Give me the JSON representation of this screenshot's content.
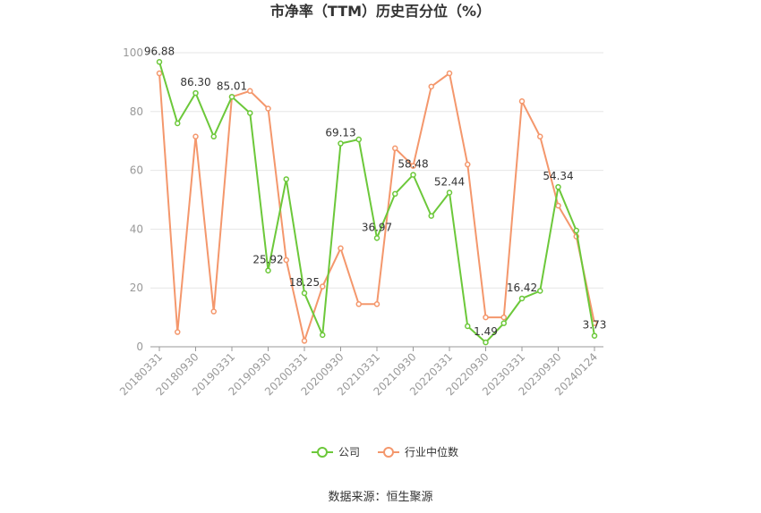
{
  "chart_data": {
    "type": "line",
    "title": "市净率（TTM）历史百分位（%）",
    "source": "数据来源：恒生聚源",
    "categories": [
      "20180331",
      null,
      "20180930",
      null,
      "20190331",
      null,
      "20190930",
      null,
      "20200331",
      null,
      "20200930",
      null,
      "20210331",
      null,
      "20210930",
      null,
      "20220331",
      null,
      "20220930",
      null,
      "20230331",
      null,
      "20230930",
      null,
      "20240124"
    ],
    "ylim": [
      0,
      100
    ],
    "yticks": [
      0,
      20,
      40,
      60,
      80,
      100
    ],
    "grid": true,
    "legend": "bottom",
    "series": [
      {
        "name": "公司",
        "color": "#6cc83a",
        "values": [
          96.88,
          76,
          86.3,
          71.5,
          85.01,
          79.5,
          25.92,
          57,
          18.25,
          4,
          69.13,
          70.5,
          36.97,
          52,
          58.48,
          44.5,
          52.44,
          7,
          1.49,
          8,
          16.42,
          19,
          54.34,
          39.5,
          3.73
        ],
        "value_labels": [
          "96.88",
          null,
          "86.30",
          null,
          "85.01",
          null,
          "25.92",
          null,
          "18.25",
          null,
          "69.13",
          null,
          "36.97",
          null,
          "58.48",
          null,
          "52.44",
          null,
          "1.49",
          null,
          "16.42",
          null,
          "54.34",
          null,
          "3.73"
        ]
      },
      {
        "name": "行业中位数",
        "color": "#f4976c",
        "values": [
          93,
          5,
          71.5,
          12,
          85,
          87,
          81,
          29.5,
          2,
          20.5,
          33.5,
          14.5,
          14.5,
          67.5,
          61.5,
          88.5,
          93,
          62,
          10,
          10,
          83.5,
          71.5,
          48,
          37.5,
          8
        ]
      }
    ]
  }
}
